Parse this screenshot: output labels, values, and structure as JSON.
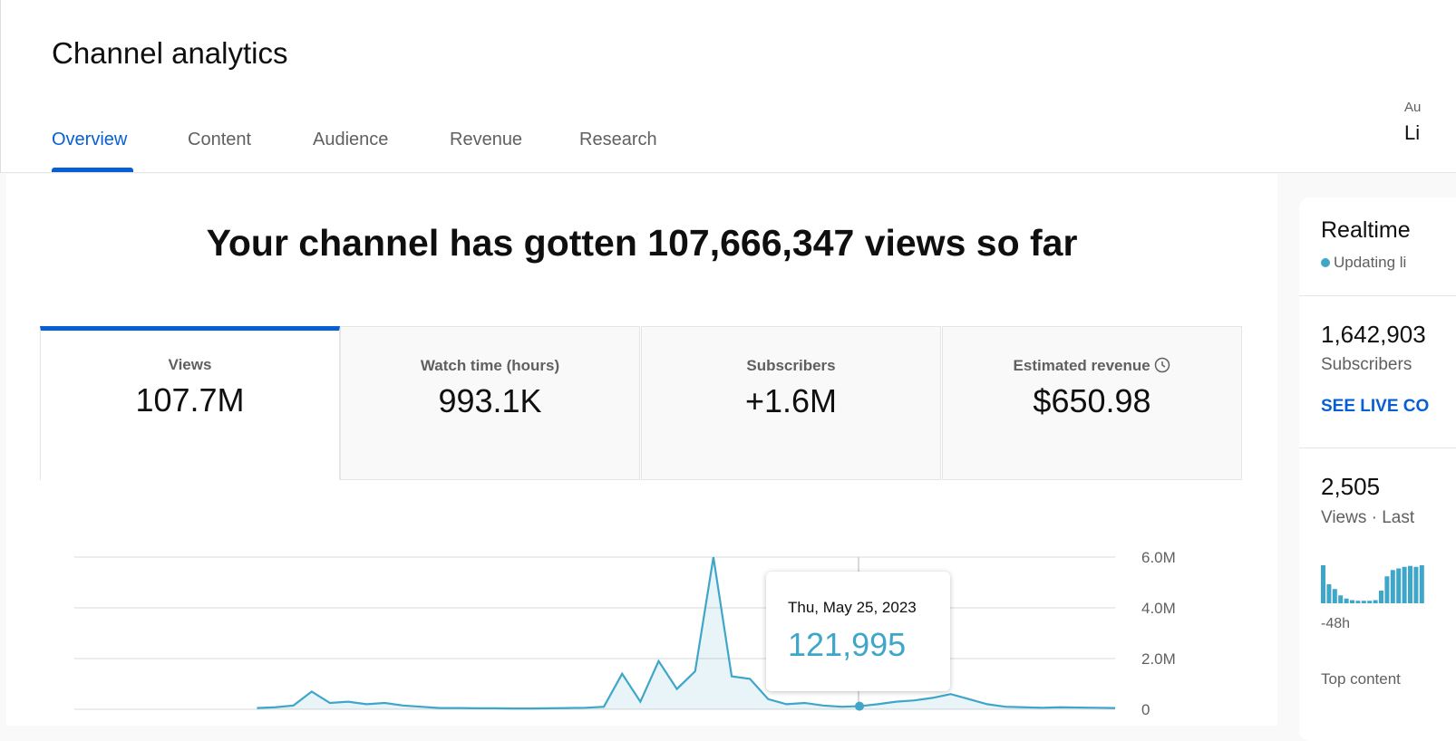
{
  "header": {
    "title": "Channel analytics",
    "tabs": [
      "Overview",
      "Content",
      "Audience",
      "Revenue",
      "Research"
    ],
    "right_label": "Au",
    "right_value": "Li"
  },
  "headline": "Your channel has gotten 107,666,347 views so far",
  "metrics": [
    {
      "label": "Views",
      "value": "107.7M"
    },
    {
      "label": "Watch time (hours)",
      "value": "993.1K"
    },
    {
      "label": "Subscribers",
      "value": "+1.6M"
    },
    {
      "label": "Estimated revenue",
      "value": "$650.98"
    }
  ],
  "chart_data": {
    "type": "line",
    "color": "#3ea6c9",
    "values": [
      null,
      null,
      null,
      null,
      null,
      null,
      null,
      null,
      null,
      null,
      50000,
      80000,
      150000,
      700000,
      250000,
      300000,
      200000,
      250000,
      150000,
      100000,
      50000,
      50000,
      40000,
      40000,
      30000,
      30000,
      40000,
      50000,
      60000,
      100000,
      1400000,
      300000,
      1900000,
      800000,
      1500000,
      6000000,
      1300000,
      1200000,
      400000,
      200000,
      250000,
      150000,
      100000,
      121995,
      200000,
      300000,
      350000,
      450000,
      600000,
      400000,
      200000,
      100000,
      80000,
      60000,
      80000,
      70000,
      60000,
      50000
    ],
    "ylim": [
      0,
      6000000
    ],
    "yticks": [
      0,
      {
        "value": 2000000,
        "label": "2.0M"
      },
      {
        "value": 4000000,
        "label": "4.0M"
      },
      {
        "value": 6000000,
        "label": "6.0M"
      }
    ],
    "grid": true,
    "tooltip": {
      "date": "Thu, May 25, 2023",
      "value": "121,995"
    }
  },
  "realtime": {
    "title": "Realtime",
    "status": "Updating li",
    "subscribers": "1,642,903",
    "subscribers_label": "Subscribers",
    "link": "SEE LIVE CO",
    "views": "2,505",
    "views_label": "Views · Last",
    "start_label": "-48h",
    "top_content": "Top content",
    "bars": [
      120,
      60,
      45,
      25,
      15,
      10,
      8,
      8,
      8,
      10,
      40,
      85,
      105,
      110,
      115,
      118,
      115,
      120
    ]
  }
}
